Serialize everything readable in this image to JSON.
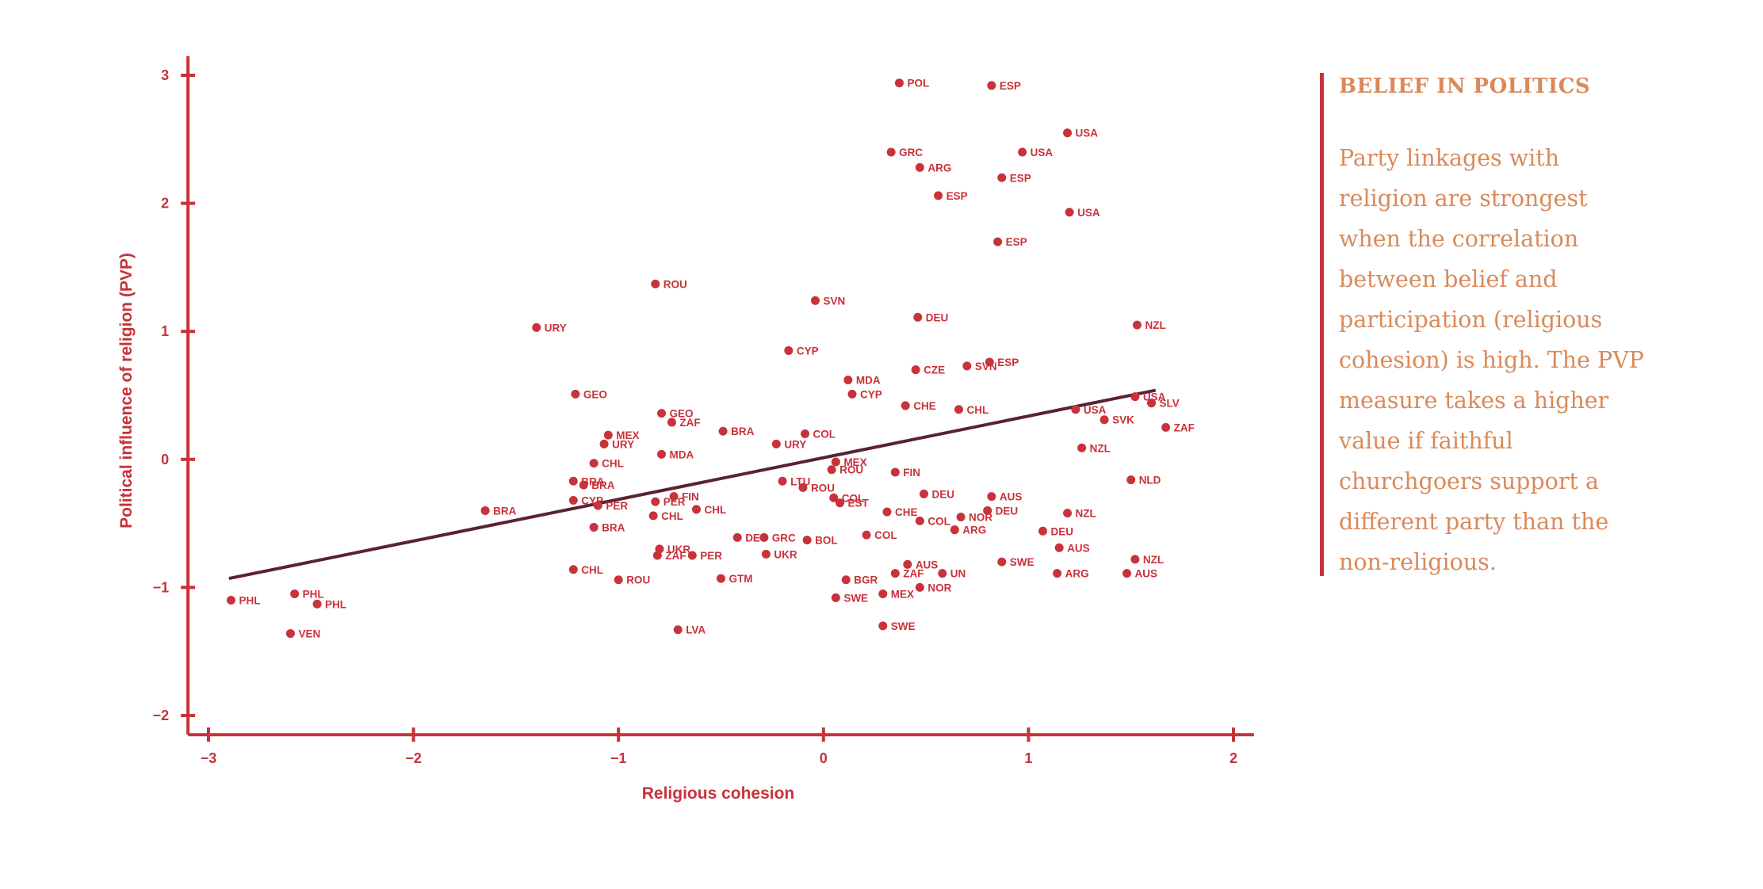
{
  "chart_data": {
    "type": "scatter",
    "xlabel": "Religious cohesion",
    "ylabel": "Political influence of religion (PVP)",
    "xlim": [
      -3.1,
      2.1
    ],
    "ylim": [
      -2.15,
      3.15
    ],
    "x_ticks": [
      -3,
      -2,
      -1,
      0,
      1,
      2
    ],
    "y_ticks": [
      -2,
      -1,
      0,
      1,
      2,
      3
    ],
    "trendline": {
      "x": [
        -2.9,
        1.62
      ],
      "y": [
        -0.93,
        0.54
      ]
    },
    "color": "#c8323a",
    "trend_color": "#5a2233",
    "points": [
      {
        "label": "POL",
        "x": 0.37,
        "y": 2.94
      },
      {
        "label": "ESP",
        "x": 0.82,
        "y": 2.92
      },
      {
        "label": "USA",
        "x": 1.19,
        "y": 2.55
      },
      {
        "label": "GRC",
        "x": 0.33,
        "y": 2.4
      },
      {
        "label": "USA",
        "x": 0.97,
        "y": 2.4
      },
      {
        "label": "ARG",
        "x": 0.47,
        "y": 2.28
      },
      {
        "label": "ESP",
        "x": 0.87,
        "y": 2.2
      },
      {
        "label": "ESP",
        "x": 0.56,
        "y": 2.06
      },
      {
        "label": "USA",
        "x": 1.2,
        "y": 1.93
      },
      {
        "label": "ESP",
        "x": 0.85,
        "y": 1.7
      },
      {
        "label": "ROU",
        "x": -0.82,
        "y": 1.37
      },
      {
        "label": "SVN",
        "x": -0.04,
        "y": 1.24
      },
      {
        "label": "DEU",
        "x": 0.46,
        "y": 1.11
      },
      {
        "label": "URY",
        "x": -1.4,
        "y": 1.03
      },
      {
        "label": "NZL",
        "x": 1.53,
        "y": 1.05
      },
      {
        "label": "CYP",
        "x": -0.17,
        "y": 0.85
      },
      {
        "label": "ESP",
        "x": 0.81,
        "y": 0.76
      },
      {
        "label": "SVN",
        "x": 0.7,
        "y": 0.73
      },
      {
        "label": "CZE",
        "x": 0.45,
        "y": 0.7
      },
      {
        "label": "MDA",
        "x": 0.12,
        "y": 0.62
      },
      {
        "label": "CYP",
        "x": 0.14,
        "y": 0.51
      },
      {
        "label": "GEO",
        "x": -1.21,
        "y": 0.51
      },
      {
        "label": "USA",
        "x": 1.52,
        "y": 0.49
      },
      {
        "label": "SLV",
        "x": 1.6,
        "y": 0.44
      },
      {
        "label": "CHE",
        "x": 0.4,
        "y": 0.42
      },
      {
        "label": "CHL",
        "x": 0.66,
        "y": 0.39
      },
      {
        "label": "USA",
        "x": 1.23,
        "y": 0.39
      },
      {
        "label": "GEO",
        "x": -0.79,
        "y": 0.36
      },
      {
        "label": "SVK",
        "x": 1.37,
        "y": 0.31
      },
      {
        "label": "ZAF",
        "x": -0.74,
        "y": 0.29
      },
      {
        "label": "ZAF",
        "x": 1.67,
        "y": 0.25
      },
      {
        "label": "BRA",
        "x": -0.49,
        "y": 0.22
      },
      {
        "label": "COL",
        "x": -0.09,
        "y": 0.2
      },
      {
        "label": "MEX",
        "x": -1.05,
        "y": 0.19
      },
      {
        "label": "URY",
        "x": -0.23,
        "y": 0.12
      },
      {
        "label": "URY",
        "x": -1.07,
        "y": 0.12
      },
      {
        "label": "NZL",
        "x": 1.26,
        "y": 0.09
      },
      {
        "label": "MDA",
        "x": -0.79,
        "y": 0.04
      },
      {
        "label": "MEX",
        "x": 0.06,
        "y": -0.02
      },
      {
        "label": "CHL",
        "x": -1.12,
        "y": -0.03
      },
      {
        "label": "ROU",
        "x": 0.04,
        "y": -0.08
      },
      {
        "label": "FIN",
        "x": 0.35,
        "y": -0.1
      },
      {
        "label": "NLD",
        "x": 1.5,
        "y": -0.16
      },
      {
        "label": "LTU",
        "x": -0.2,
        "y": -0.17
      },
      {
        "label": "BRA",
        "x": -1.22,
        "y": -0.17
      },
      {
        "label": "BRA",
        "x": -1.17,
        "y": -0.2
      },
      {
        "label": "ROU",
        "x": -0.1,
        "y": -0.22
      },
      {
        "label": "FIN",
        "x": -0.73,
        "y": -0.29
      },
      {
        "label": "DEU",
        "x": 0.49,
        "y": -0.27
      },
      {
        "label": "AUS",
        "x": 0.82,
        "y": -0.29
      },
      {
        "label": "COL",
        "x": 0.05,
        "y": -0.3
      },
      {
        "label": "CYP",
        "x": -1.22,
        "y": -0.32
      },
      {
        "label": "PER",
        "x": -0.82,
        "y": -0.33
      },
      {
        "label": "EST",
        "x": 0.08,
        "y": -0.34
      },
      {
        "label": "PER",
        "x": -1.1,
        "y": -0.36
      },
      {
        "label": "CHL",
        "x": -0.62,
        "y": -0.39
      },
      {
        "label": "BRA",
        "x": -1.65,
        "y": -0.4
      },
      {
        "label": "CHE",
        "x": 0.31,
        "y": -0.41
      },
      {
        "label": "DEU",
        "x": 0.8,
        "y": -0.4
      },
      {
        "label": "NZL",
        "x": 1.19,
        "y": -0.42
      },
      {
        "label": "CHL",
        "x": -0.83,
        "y": -0.44
      },
      {
        "label": "NOR",
        "x": 0.67,
        "y": -0.45
      },
      {
        "label": "COL",
        "x": 0.47,
        "y": -0.48
      },
      {
        "label": "BRA",
        "x": -1.12,
        "y": -0.53
      },
      {
        "label": "ARG",
        "x": 0.64,
        "y": -0.55
      },
      {
        "label": "DEU",
        "x": 1.07,
        "y": -0.56
      },
      {
        "label": "COL",
        "x": 0.21,
        "y": -0.59
      },
      {
        "label": "DEU",
        "x": -0.42,
        "y": -0.61
      },
      {
        "label": "GRC",
        "x": -0.29,
        "y": -0.61
      },
      {
        "label": "BOL",
        "x": -0.08,
        "y": -0.63
      },
      {
        "label": "AUS",
        "x": 1.15,
        "y": -0.69
      },
      {
        "label": "UKR",
        "x": -0.8,
        "y": -0.7
      },
      {
        "label": "UKR",
        "x": -0.28,
        "y": -0.74
      },
      {
        "label": "ZAF",
        "x": -0.81,
        "y": -0.75
      },
      {
        "label": "PER",
        "x": -0.64,
        "y": -0.75
      },
      {
        "label": "NZL",
        "x": 1.52,
        "y": -0.78
      },
      {
        "label": "SWE",
        "x": 0.87,
        "y": -0.8
      },
      {
        "label": "AUS",
        "x": 0.41,
        "y": -0.82
      },
      {
        "label": "CHL",
        "x": -1.22,
        "y": -0.86
      },
      {
        "label": "ZAF",
        "x": 0.35,
        "y": -0.89
      },
      {
        "label": "UN",
        "x": 0.58,
        "y": -0.89
      },
      {
        "label": "ARG",
        "x": 1.14,
        "y": -0.89
      },
      {
        "label": "AUS",
        "x": 1.48,
        "y": -0.89
      },
      {
        "label": "ROU",
        "x": -1.0,
        "y": -0.94
      },
      {
        "label": "GTM",
        "x": -0.5,
        "y": -0.93
      },
      {
        "label": "BGR",
        "x": 0.11,
        "y": -0.94
      },
      {
        "label": "NOR",
        "x": 0.47,
        "y": -1.0
      },
      {
        "label": "MEX",
        "x": 0.29,
        "y": -1.05
      },
      {
        "label": "SWE",
        "x": 0.06,
        "y": -1.08
      },
      {
        "label": "PHL",
        "x": -2.89,
        "y": -1.1
      },
      {
        "label": "PHL",
        "x": -2.58,
        "y": -1.05
      },
      {
        "label": "PHL",
        "x": -2.47,
        "y": -1.13
      },
      {
        "label": "SWE",
        "x": 0.29,
        "y": -1.3
      },
      {
        "label": "LVA",
        "x": -0.71,
        "y": -1.33
      },
      {
        "label": "VEN",
        "x": -2.6,
        "y": -1.36
      }
    ]
  },
  "sidebar": {
    "title": "BELIEF IN POLITICS",
    "body": "Party linkages with religion are strongest when the correlation between belief and participation (religious cohesion) is high. The PVP measure takes a higher value if faithful churchgoers support a different party than the non-religious."
  }
}
